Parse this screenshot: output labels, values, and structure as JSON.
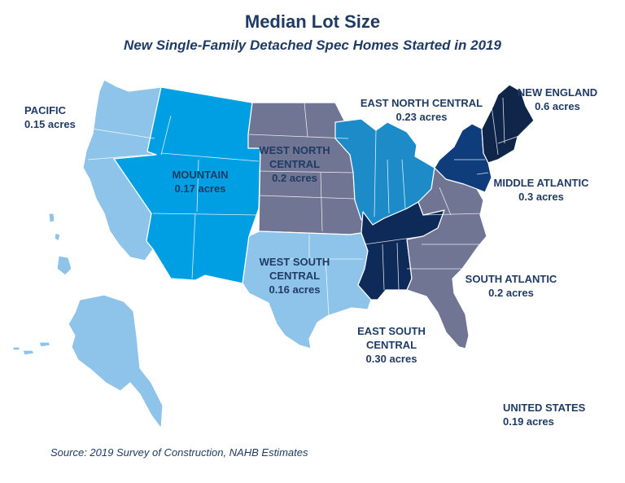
{
  "title": "Median Lot Size",
  "subtitle": "New Single-Family Detached Spec Homes Started in 2019",
  "source": "Source: 2019 Survey of Construction, NAHB Estimates",
  "colors": {
    "pacific": "#8ec3ea",
    "mountain": "#009fe3",
    "west_north_central": "#6f7592",
    "west_south_central": "#8ec3ea",
    "east_north_central": "#1c8bc8",
    "east_south_central": "#0d2a58",
    "south_atlantic": "#6f7592",
    "middle_atlantic": "#0f3d7c",
    "new_england": "#10254a",
    "text": "#1f3b63"
  },
  "regions": {
    "pacific": {
      "name": "PACIFIC",
      "value": "0.15 acres"
    },
    "mountain": {
      "name": "MOUNTAIN",
      "value": "0.17 acres"
    },
    "west_north_central": {
      "name_line1": "WEST NORTH",
      "name_line2": "CENTRAL",
      "value": "0.2 acres"
    },
    "west_south_central": {
      "name_line1": "WEST SOUTH",
      "name_line2": "CENTRAL",
      "value": "0.16 acres"
    },
    "east_north_central": {
      "name": "EAST NORTH CENTRAL",
      "value": "0.23 acres"
    },
    "east_south_central": {
      "name_line1": "EAST SOUTH",
      "name_line2": "CENTRAL",
      "value": "0.30 acres"
    },
    "south_atlantic": {
      "name": "SOUTH ATLANTIC",
      "value": "0.2 acres"
    },
    "middle_atlantic": {
      "name": "MIDDLE ATLANTIC",
      "value": "0.3 acres"
    },
    "new_england": {
      "name": "NEW ENGLAND",
      "value": "0.6 acres"
    },
    "united_states": {
      "name": "UNITED STATES",
      "value": "0.19 acres"
    }
  }
}
